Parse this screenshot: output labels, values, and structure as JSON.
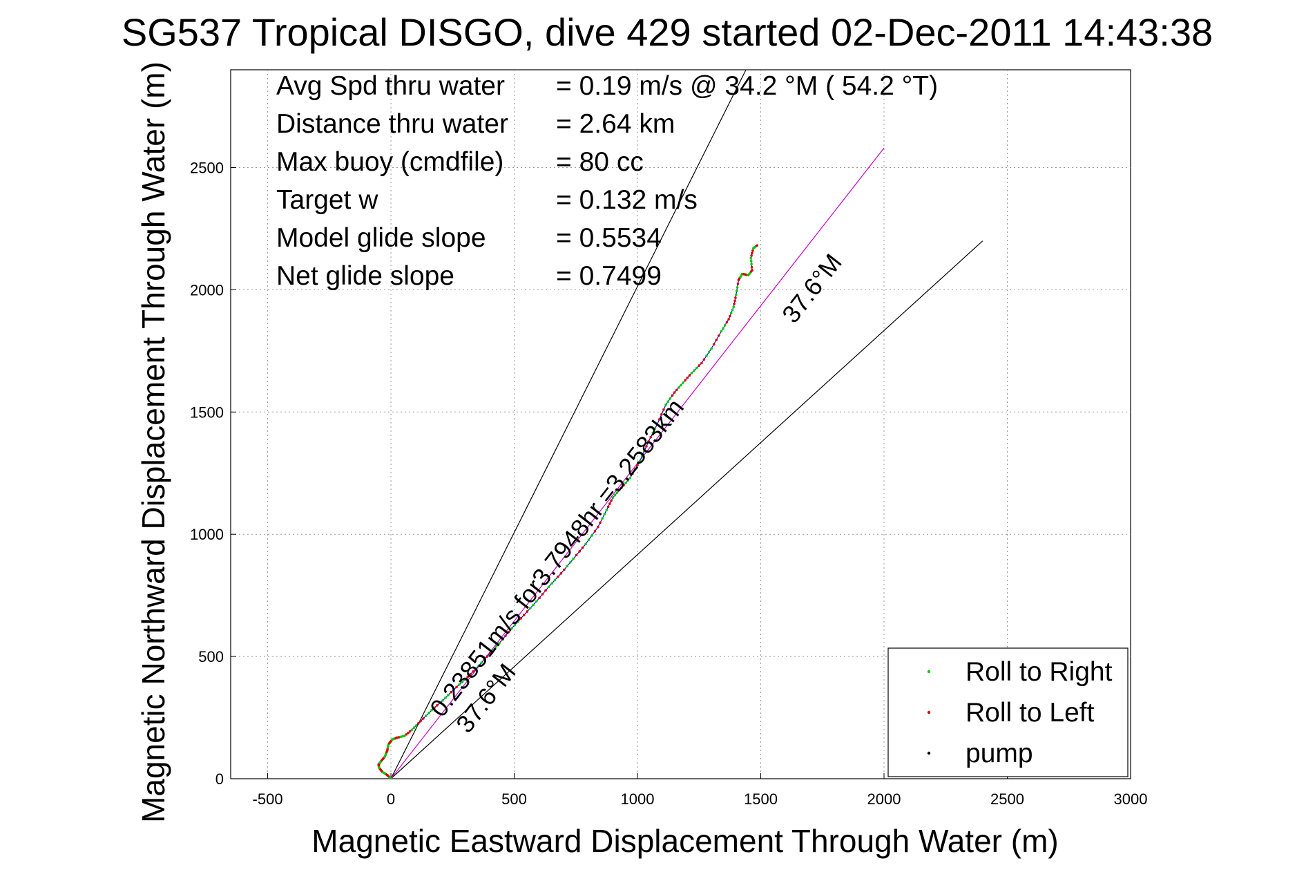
{
  "title": "SG537 Tropical DISGO, dive 429 started 02-Dec-2011 14:43:38",
  "info": [
    {
      "label": "Avg Spd thru water",
      "value": "=  0.19 m/s @  34.2 °M ( 54.2 °T)"
    },
    {
      "label": "Distance thru water",
      "value": "=  2.64 km"
    },
    {
      "label": "Max buoy (cmdfile)",
      "value": "= 80 cc"
    },
    {
      "label": "Target w",
      "value": "= 0.132 m/s"
    },
    {
      "label": "Model glide slope",
      "value": "= 0.5534"
    },
    {
      "label": "Net glide slope",
      "value": "= 0.7499"
    }
  ],
  "annotations": {
    "upper_heading": "37.6°M",
    "lower_heading": "37.6°M",
    "track_summary": "0.23851m/s for3.7948hr =3.2583km"
  },
  "colors": {
    "roll_right": "#00cc00",
    "roll_left": "#dd0000",
    "pump": "#000000",
    "net_track": "#cc00cc",
    "track_line": "#0000ff",
    "cone_lines": "#000000"
  },
  "chart_data": {
    "type": "line",
    "title": "SG537 Tropical DISGO, dive 429 started 02-Dec-2011 14:43:38",
    "xlabel": "Magnetic Eastward Displacement Through Water (m)",
    "ylabel": "Magnetic Northward Displacement Through Water (m)",
    "xlim": [
      -650,
      3000
    ],
    "ylim": [
      0,
      2900
    ],
    "xticks": [
      -500,
      0,
      500,
      1000,
      1500,
      2000,
      2500,
      3000
    ],
    "yticks": [
      0,
      500,
      1000,
      1500,
      2000,
      2500
    ],
    "xtick_labels": [
      "-500",
      "0",
      "500",
      "1000",
      "1500",
      "2000",
      "2500",
      "3000"
    ],
    "ytick_labels": [
      "0",
      "500",
      "1000",
      "1500",
      "2000",
      "2500"
    ],
    "grid": true,
    "legend_position": "bottom-right",
    "legend": [
      {
        "label": "Roll to Right",
        "marker": "dot",
        "color": "#00cc00"
      },
      {
        "label": "Roll to Left",
        "marker": "dot",
        "color": "#dd0000"
      },
      {
        "label": "pump",
        "marker": "dot",
        "color": "#000000"
      }
    ],
    "reference_lines": [
      {
        "name": "upper bound",
        "from": [
          0,
          0
        ],
        "to": [
          1440,
          2900
        ],
        "color": "#000000"
      },
      {
        "name": "lower bound",
        "from": [
          0,
          0
        ],
        "to": [
          2400,
          2200
        ],
        "color": "#000000"
      },
      {
        "name": "net direction",
        "from": [
          0,
          0
        ],
        "to": [
          2000,
          2580
        ],
        "color": "#cc00cc"
      }
    ],
    "series": [
      {
        "type": "track",
        "color": "#0000ff",
        "points": [
          [
            0,
            0
          ],
          [
            -15,
            15
          ],
          [
            -35,
            28
          ],
          [
            -48,
            45
          ],
          [
            -50,
            58
          ],
          [
            -40,
            72
          ],
          [
            -25,
            90
          ],
          [
            -15,
            115
          ],
          [
            -10,
            140
          ],
          [
            5,
            160
          ],
          [
            25,
            168
          ],
          [
            55,
            175
          ],
          [
            85,
            200
          ],
          [
            120,
            235
          ],
          [
            165,
            280
          ],
          [
            210,
            320
          ],
          [
            255,
            365
          ],
          [
            300,
            405
          ],
          [
            345,
            450
          ],
          [
            390,
            500
          ],
          [
            440,
            555
          ],
          [
            490,
            615
          ],
          [
            540,
            670
          ],
          [
            590,
            725
          ],
          [
            640,
            785
          ],
          [
            690,
            840
          ],
          [
            740,
            900
          ],
          [
            790,
            960
          ],
          [
            840,
            1030
          ],
          [
            875,
            1100
          ],
          [
            900,
            1150
          ],
          [
            935,
            1190
          ],
          [
            970,
            1230
          ],
          [
            1010,
            1300
          ],
          [
            1045,
            1380
          ],
          [
            1080,
            1450
          ],
          [
            1115,
            1530
          ],
          [
            1150,
            1580
          ],
          [
            1185,
            1620
          ],
          [
            1220,
            1660
          ],
          [
            1260,
            1700
          ],
          [
            1300,
            1760
          ],
          [
            1340,
            1830
          ],
          [
            1370,
            1880
          ],
          [
            1390,
            1930
          ],
          [
            1400,
            1980
          ],
          [
            1410,
            2040
          ],
          [
            1425,
            2065
          ],
          [
            1450,
            2060
          ],
          [
            1465,
            2080
          ],
          [
            1460,
            2130
          ],
          [
            1470,
            2170
          ],
          [
            1490,
            2185
          ]
        ]
      }
    ]
  }
}
